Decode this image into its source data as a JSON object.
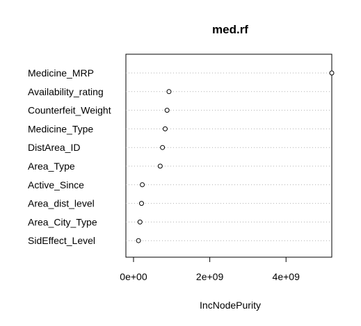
{
  "chart_data": {
    "type": "scatter",
    "title": "med.rf",
    "xlabel": "IncNodePurity",
    "ylabel": "",
    "xlim": [
      -200000000.0,
      5200000000.0
    ],
    "xticks": [
      0,
      2000000000,
      4000000000
    ],
    "xtick_labels": [
      "0e+00",
      "2e+09",
      "4e+09"
    ],
    "grid": "dotted horizontal guide per variable",
    "categories": [
      "Medicine_MRP",
      "Availability_rating",
      "Counterfeit_Weight",
      "Medicine_Type",
      "DistArea_ID",
      "Area_Type",
      "Active_Since",
      "Area_dist_level",
      "Area_City_Type",
      "SidEffect_Level"
    ],
    "values": [
      5200000000,
      930000000,
      880000000,
      830000000,
      760000000,
      700000000,
      230000000,
      210000000,
      170000000,
      130000000
    ]
  }
}
